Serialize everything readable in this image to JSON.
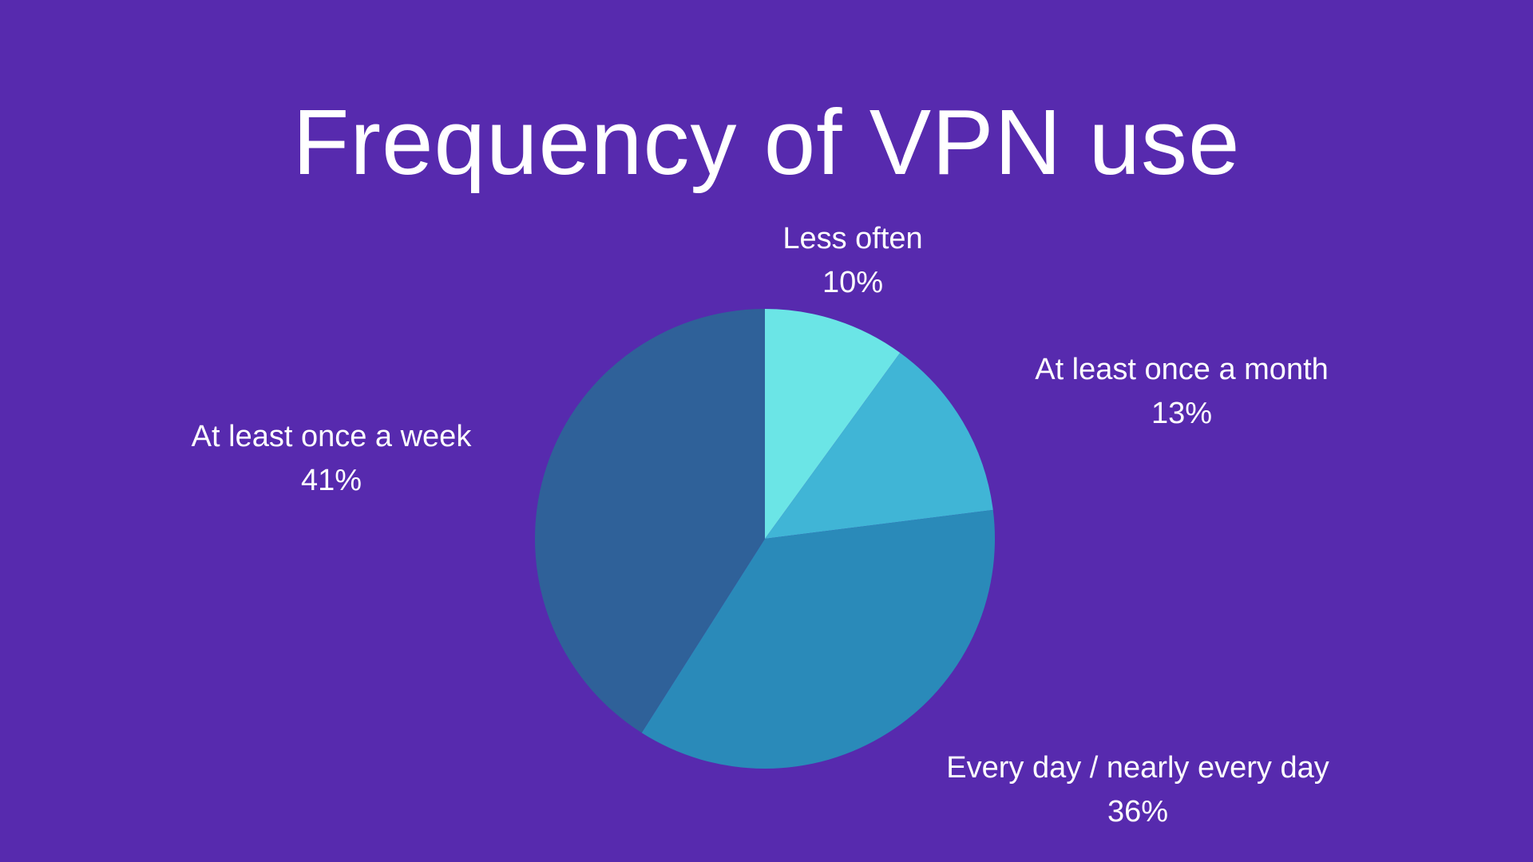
{
  "chart_data": {
    "type": "pie",
    "title": "Frequency of VPN use",
    "slices": [
      {
        "label": "Less often",
        "value": 10,
        "value_label": "10%",
        "color": "#6BE5E6"
      },
      {
        "label": "At least once a month",
        "value": 13,
        "value_label": "13%",
        "color": "#40B5D6"
      },
      {
        "label": "Every day / nearly every day",
        "value": 36,
        "value_label": "36%",
        "color": "#2A8AB9"
      },
      {
        "label": "At least once a week",
        "value": 41,
        "value_label": "41%",
        "color": "#2F6199"
      }
    ],
    "legend": "none",
    "data_labels": "outside"
  },
  "theme": {
    "background": "#572AAE",
    "text_color": "#FFFFFF"
  }
}
